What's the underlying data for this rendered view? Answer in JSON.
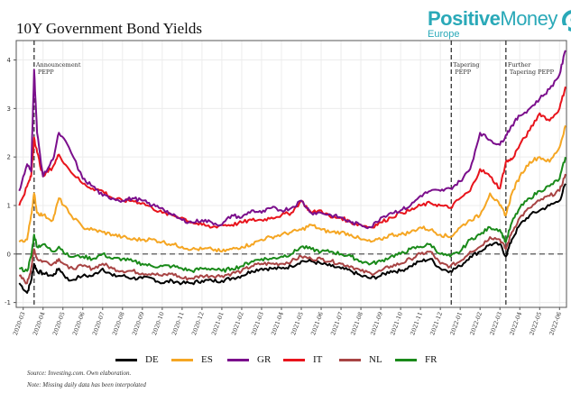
{
  "header": {
    "title": "10Y Government Bond Yields",
    "logo_bold": "Positive",
    "logo_light": "Money",
    "logo_sub": "Europe",
    "brand_color": "#2aa9b8"
  },
  "footer": {
    "source": "Source: Investing.com. Own elaboration.",
    "note": "Note: Missing daily data has been interpolated"
  },
  "chart_data": {
    "type": "line",
    "title": "10Y Government Bond Yields",
    "xlabel": "",
    "ylabel": "",
    "ylim": [
      -1.1,
      4.4
    ],
    "grid": true,
    "legend_placement": "bottom",
    "y_ticks": [
      "-1",
      "0",
      "1",
      "2",
      "3",
      "4"
    ],
    "x_ticks": [
      "2020-03",
      "2020-04",
      "2020-05",
      "2020-06",
      "2020-07",
      "2020-08",
      "2020-09",
      "2020-10",
      "2020-11",
      "2020-12",
      "2021-01",
      "2021-02",
      "2021-03",
      "2021-04",
      "2021-05",
      "2021-06",
      "2021-07",
      "2021-08",
      "2021-09",
      "2021-10",
      "2021-11",
      "2021-12",
      "2022-01",
      "2022-02",
      "2022-03",
      "2022-04",
      "2022-05",
      "2022-06"
    ],
    "x_months": [
      0,
      1,
      2,
      3,
      4,
      5,
      6,
      7,
      8,
      9,
      10,
      11,
      12,
      13,
      14,
      15,
      16,
      17,
      18,
      19,
      20,
      21,
      22,
      23,
      24,
      25,
      26,
      27
    ],
    "annotations": [
      {
        "month": 0.55,
        "label_line1": "Announcement",
        "label_line2": "PEPP"
      },
      {
        "month": 21.55,
        "label_line1": "Tapering",
        "label_line2": "PEPP"
      },
      {
        "month": 24.3,
        "label_line1": "Further",
        "label_line2": "Tapering PEPP"
      }
    ],
    "x": [
      -0.2,
      0.2,
      0.4,
      0.55,
      0.7,
      1.0,
      1.5,
      1.8,
      2.3,
      3,
      3.5,
      4,
      4.5,
      5,
      5.5,
      6,
      6.5,
      7,
      7.5,
      8,
      8.5,
      9,
      9.5,
      10,
      10.5,
      11,
      11.5,
      12,
      12.5,
      13,
      13.5,
      14,
      14.5,
      15,
      15.5,
      16,
      16.5,
      17,
      17.5,
      18,
      18.5,
      19,
      19.5,
      20,
      20.5,
      21,
      21.5,
      22,
      22.5,
      23,
      23.5,
      24,
      24.3,
      24.6,
      25,
      25.5,
      26,
      26.5,
      27,
      27.3
    ],
    "series": [
      {
        "name": "DE",
        "color": "#000000",
        "values": [
          -0.6,
          -0.8,
          -0.55,
          -0.2,
          -0.35,
          -0.4,
          -0.45,
          -0.3,
          -0.55,
          -0.45,
          -0.45,
          -0.3,
          -0.45,
          -0.45,
          -0.5,
          -0.5,
          -0.5,
          -0.6,
          -0.55,
          -0.6,
          -0.6,
          -0.55,
          -0.55,
          -0.55,
          -0.5,
          -0.45,
          -0.35,
          -0.3,
          -0.3,
          -0.3,
          -0.25,
          -0.15,
          -0.15,
          -0.2,
          -0.25,
          -0.3,
          -0.35,
          -0.45,
          -0.5,
          -0.45,
          -0.35,
          -0.35,
          -0.25,
          -0.15,
          -0.1,
          -0.3,
          -0.35,
          -0.25,
          -0.05,
          0.05,
          0.2,
          0.2,
          -0.05,
          0.3,
          0.6,
          0.8,
          0.9,
          1.0,
          1.1,
          1.45
        ]
      },
      {
        "name": "ES",
        "color": "#f5a623",
        "values": [
          0.25,
          0.3,
          0.8,
          1.25,
          0.85,
          0.8,
          0.7,
          1.15,
          0.85,
          0.55,
          0.5,
          0.45,
          0.4,
          0.35,
          0.3,
          0.3,
          0.3,
          0.25,
          0.2,
          0.15,
          0.1,
          0.1,
          0.1,
          0.05,
          0.1,
          0.15,
          0.2,
          0.3,
          0.35,
          0.4,
          0.45,
          0.5,
          0.6,
          0.5,
          0.45,
          0.45,
          0.4,
          0.3,
          0.25,
          0.3,
          0.4,
          0.4,
          0.45,
          0.55,
          0.5,
          0.4,
          0.35,
          0.55,
          0.7,
          0.8,
          1.25,
          1.0,
          0.8,
          1.25,
          1.6,
          1.9,
          2.0,
          1.9,
          2.2,
          2.65
        ]
      },
      {
        "name": "GR",
        "color": "#7b0f8c",
        "values": [
          1.3,
          1.85,
          1.7,
          3.8,
          2.5,
          1.6,
          1.95,
          2.5,
          2.2,
          1.55,
          1.4,
          1.2,
          1.15,
          1.1,
          1.15,
          1.1,
          1.0,
          0.95,
          0.8,
          0.7,
          0.65,
          0.7,
          0.65,
          0.6,
          0.8,
          0.75,
          0.9,
          0.85,
          0.95,
          0.9,
          0.95,
          1.1,
          0.85,
          0.85,
          0.8,
          0.75,
          0.65,
          0.6,
          0.55,
          0.75,
          0.85,
          0.9,
          1.0,
          1.2,
          1.3,
          1.3,
          1.35,
          1.5,
          1.75,
          2.5,
          2.35,
          2.25,
          2.45,
          2.65,
          2.85,
          3.0,
          3.2,
          3.4,
          3.7,
          4.2
        ]
      },
      {
        "name": "IT",
        "color": "#e8141c",
        "values": [
          1.0,
          1.4,
          1.6,
          2.4,
          2.1,
          1.6,
          1.8,
          2.05,
          1.75,
          1.45,
          1.35,
          1.3,
          1.15,
          1.1,
          1.1,
          1.05,
          0.95,
          0.85,
          0.8,
          0.75,
          0.65,
          0.6,
          0.55,
          0.6,
          0.6,
          0.65,
          0.7,
          0.7,
          0.75,
          0.8,
          0.85,
          1.1,
          0.85,
          0.9,
          0.75,
          0.75,
          0.65,
          0.6,
          0.55,
          0.65,
          0.75,
          0.85,
          0.9,
          1.0,
          1.05,
          1.0,
          0.95,
          1.15,
          1.3,
          1.75,
          1.6,
          1.35,
          1.9,
          1.95,
          2.25,
          2.55,
          2.9,
          2.75,
          3.0,
          3.45
        ]
      },
      {
        "name": "NL",
        "color": "#a84444",
        "values": [
          -0.45,
          -0.6,
          -0.3,
          0.1,
          -0.1,
          -0.15,
          -0.2,
          -0.1,
          -0.3,
          -0.25,
          -0.3,
          -0.2,
          -0.3,
          -0.35,
          -0.35,
          -0.4,
          -0.4,
          -0.45,
          -0.4,
          -0.5,
          -0.5,
          -0.45,
          -0.45,
          -0.45,
          -0.4,
          -0.35,
          -0.25,
          -0.2,
          -0.2,
          -0.2,
          -0.15,
          -0.05,
          -0.1,
          -0.1,
          -0.15,
          -0.2,
          -0.25,
          -0.35,
          -0.4,
          -0.35,
          -0.25,
          -0.2,
          -0.1,
          0.0,
          0.05,
          -0.2,
          -0.25,
          -0.15,
          0.05,
          0.15,
          0.35,
          0.3,
          0.1,
          0.45,
          0.75,
          0.95,
          1.1,
          1.2,
          1.3,
          1.65
        ]
      },
      {
        "name": "FR",
        "color": "#1a8a1a",
        "values": [
          -0.3,
          -0.35,
          -0.05,
          0.4,
          0.15,
          0.2,
          0.05,
          0.15,
          -0.05,
          -0.05,
          -0.1,
          0.0,
          -0.1,
          -0.1,
          -0.15,
          -0.2,
          -0.25,
          -0.25,
          -0.25,
          -0.3,
          -0.35,
          -0.3,
          -0.3,
          -0.35,
          -0.3,
          -0.25,
          -0.15,
          -0.1,
          -0.1,
          -0.05,
          0.0,
          0.15,
          0.1,
          0.05,
          0.05,
          0.0,
          -0.05,
          -0.15,
          -0.2,
          -0.15,
          -0.05,
          0.0,
          0.1,
          0.15,
          0.2,
          0.0,
          -0.05,
          0.05,
          0.3,
          0.4,
          0.55,
          0.5,
          0.25,
          0.65,
          0.95,
          1.15,
          1.3,
          1.4,
          1.55,
          2.0
        ]
      }
    ]
  }
}
